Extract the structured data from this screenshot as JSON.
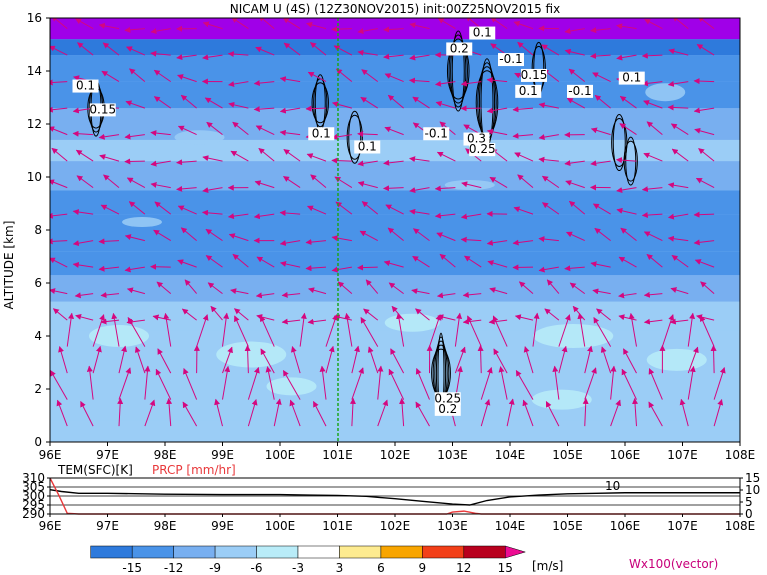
{
  "chart_data": {
    "type": "heatmap",
    "title": "NICAM U (4S) (12Z30NOV2015) init:00Z25NOV2015 fix",
    "main_panel": {
      "xlim": [
        96,
        108
      ],
      "x_ticks": [
        "96E",
        "97E",
        "98E",
        "99E",
        "100E",
        "101E",
        "102E",
        "103E",
        "104E",
        "105E",
        "106E",
        "107E",
        "108E"
      ],
      "ylim": [
        0,
        16
      ],
      "y_ticks": [
        "0",
        "2",
        "4",
        "6",
        "8",
        "10",
        "12",
        "14",
        "16"
      ],
      "ylabel": "ALTITUDE [km]",
      "marker_line_lon": 101,
      "shading_field": "U wind",
      "zonal_bands": [
        {
          "z": [
            0.0,
            0.8
          ],
          "u": -4
        },
        {
          "z": [
            0.8,
            4.2
          ],
          "u": -3
        },
        {
          "z": [
            4.2,
            5.3
          ],
          "u": -5
        },
        {
          "z": [
            5.3,
            6.3
          ],
          "u": -7
        },
        {
          "z": [
            6.3,
            7.2
          ],
          "u": -9
        },
        {
          "z": [
            7.2,
            8.6
          ],
          "u": -11
        },
        {
          "z": [
            8.6,
            9.5
          ],
          "u": -9
        },
        {
          "z": [
            9.5,
            10.6
          ],
          "u": -7
        },
        {
          "z": [
            10.6,
            11.4
          ],
          "u": -5
        },
        {
          "z": [
            11.4,
            12.6
          ],
          "u": -7
        },
        {
          "z": [
            12.6,
            13.6
          ],
          "u": -9
        },
        {
          "z": [
            13.6,
            14.6
          ],
          "u": -11
        },
        {
          "z": [
            14.6,
            15.2
          ],
          "u": -14
        },
        {
          "z": [
            15.2,
            16.0
          ],
          "u": -16
        }
      ],
      "contour_labels": [
        {
          "lon": 96.6,
          "z": 13.3,
          "text": "0.1"
        },
        {
          "lon": 96.9,
          "z": 12.4,
          "text": "0.15"
        },
        {
          "lon": 100.7,
          "z": 11.5,
          "text": "0.1"
        },
        {
          "lon": 101.5,
          "z": 11.0,
          "text": "0.1"
        },
        {
          "lon": 103.1,
          "z": 14.7,
          "text": "0.2"
        },
        {
          "lon": 103.5,
          "z": 15.3,
          "text": "0.1"
        },
        {
          "lon": 104.0,
          "z": 14.3,
          "text": "-0.1"
        },
        {
          "lon": 104.4,
          "z": 13.7,
          "text": "0.15"
        },
        {
          "lon": 104.3,
          "z": 13.1,
          "text": "0.1"
        },
        {
          "lon": 105.2,
          "z": 13.1,
          "text": "-0.1"
        },
        {
          "lon": 106.1,
          "z": 13.6,
          "text": "0.1"
        },
        {
          "lon": 102.7,
          "z": 11.5,
          "text": "-0.1"
        },
        {
          "lon": 103.4,
          "z": 11.3,
          "text": "0.3"
        },
        {
          "lon": 103.5,
          "z": 10.9,
          "text": "0.25"
        },
        {
          "lon": 102.9,
          "z": 1.5,
          "text": "0.25"
        },
        {
          "lon": 102.9,
          "z": 1.1,
          "text": "0.2"
        }
      ]
    },
    "sub_panel": {
      "left_axis_label": "TEM(SFC)[K]",
      "right_axis_label": "PRCP [mm/hr]",
      "left_ticks": [
        "310",
        "305",
        "300",
        "295",
        "290"
      ],
      "left_ylim": [
        290,
        310
      ],
      "right_ticks": [
        "15",
        "10",
        "5",
        "0"
      ],
      "right_ylim": [
        0,
        15
      ],
      "contour_label": "10",
      "x_ticks": [
        "96E",
        "97E",
        "98E",
        "99E",
        "100E",
        "101E",
        "102E",
        "103E",
        "104E",
        "105E",
        "106E",
        "107E",
        "108E"
      ],
      "temperature_series": {
        "name": "TEM(SFC)[K]",
        "lon": [
          96.0,
          96.2,
          96.5,
          97.0,
          98.0,
          99.0,
          100.0,
          100.5,
          101.0,
          101.5,
          102.0,
          102.5,
          103.0,
          103.3,
          103.6,
          104.0,
          104.5,
          105.0,
          105.5,
          106.0,
          106.5,
          107.0,
          108.0
        ],
        "values": [
          303.5,
          302.5,
          301.5,
          301.5,
          301.0,
          300.8,
          300.8,
          300.5,
          300.3,
          299.8,
          298.5,
          297.0,
          295.5,
          295.0,
          297.5,
          299.5,
          300.5,
          301.2,
          301.5,
          301.8,
          301.8,
          301.8,
          301.8
        ]
      },
      "precip_series": {
        "name": "PRCP [mm/hr]",
        "lon": [
          96.0,
          96.15,
          96.3,
          96.5,
          102.9,
          103.0,
          103.2,
          103.4,
          103.5,
          108.0
        ],
        "values": [
          15.0,
          8.0,
          0.3,
          0.0,
          0.0,
          0.8,
          1.2,
          0.3,
          0.0,
          0.0
        ]
      }
    },
    "colorbar": {
      "labels": [
        "-15",
        "-12",
        "-9",
        "-6",
        "-3",
        "3",
        "6",
        "9",
        "12",
        "15"
      ],
      "colors": [
        "#a000e8",
        "#2e7adc",
        "#4a93e8",
        "#78aff0",
        "#9bcdf6",
        "#b9ecf8",
        "#ffffff",
        "#fdeb90",
        "#f8a500",
        "#f23f18",
        "#b8001e",
        "#ec0c92"
      ],
      "unit": "[m/s]",
      "vector_note": "Wx100(vector)"
    }
  }
}
